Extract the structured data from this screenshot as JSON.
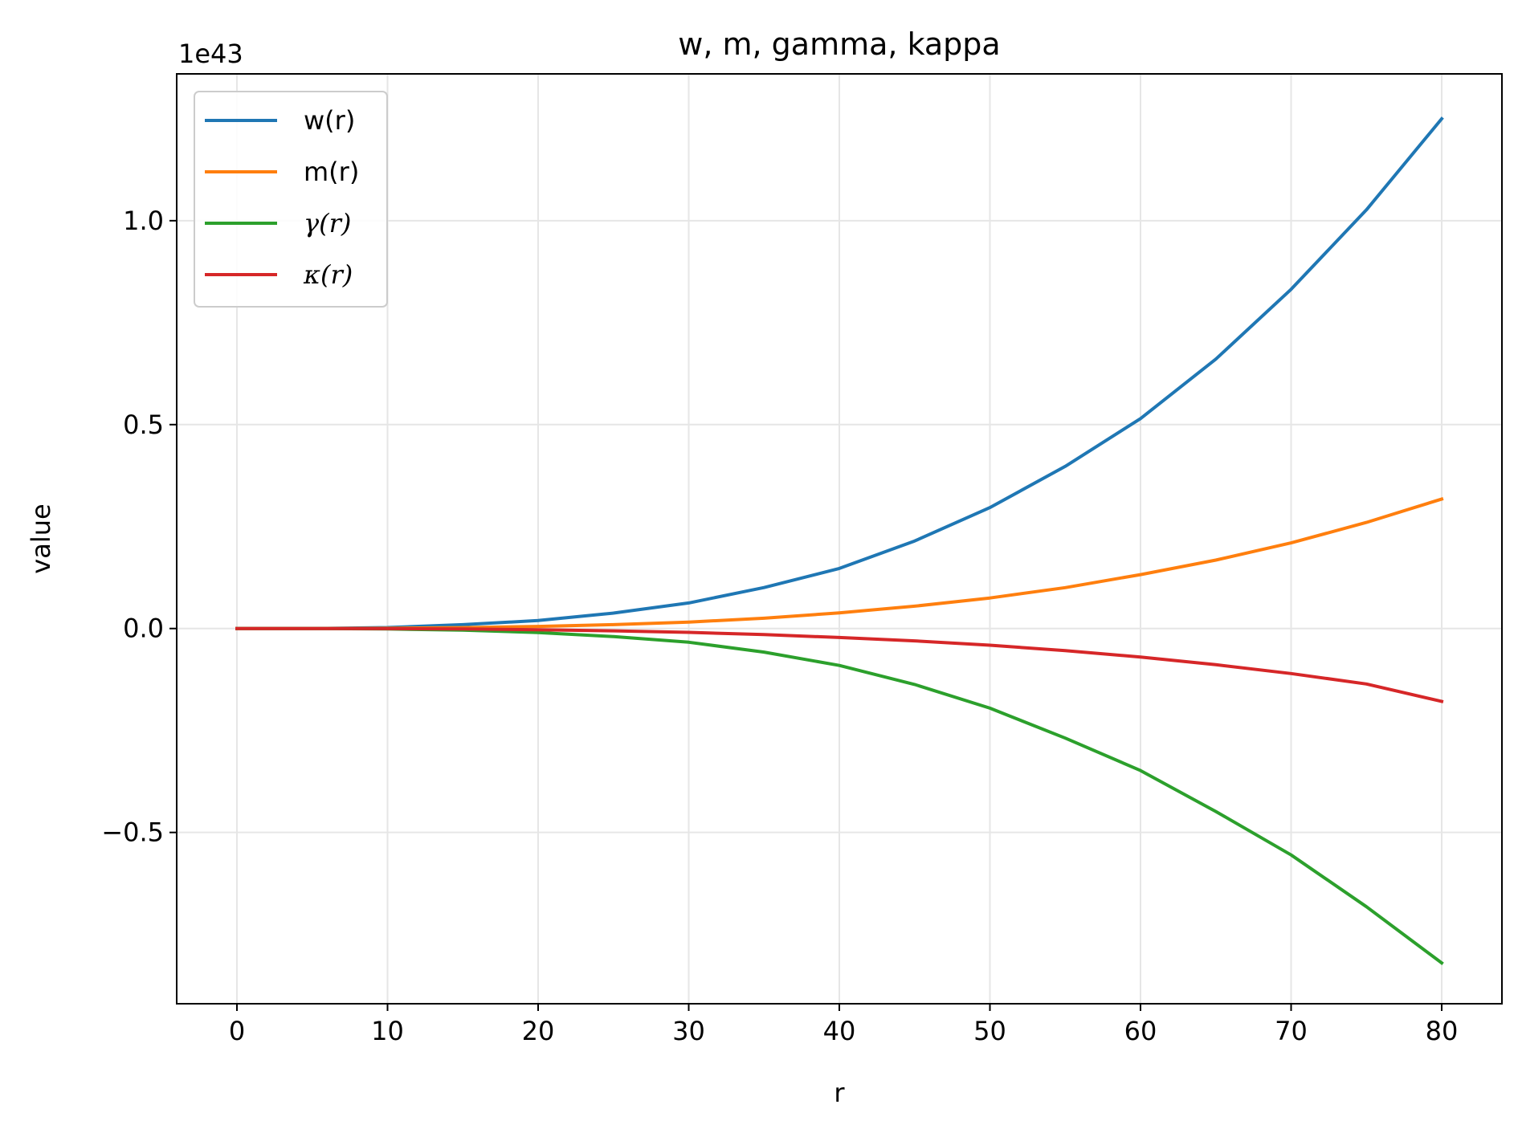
{
  "chart_data": {
    "type": "line",
    "title": "w, m, gamma, kappa",
    "xlabel": "r",
    "ylabel": "value",
    "y_offset_text": "1e43",
    "xlim": [
      -4,
      84
    ],
    "ylim": [
      -0.92,
      1.36
    ],
    "x_ticks": [
      0,
      10,
      20,
      30,
      40,
      50,
      60,
      70,
      80
    ],
    "x_tick_labels": [
      "0",
      "10",
      "20",
      "30",
      "40",
      "50",
      "60",
      "70",
      "80"
    ],
    "y_ticks": [
      -0.5,
      0.0,
      0.5,
      1.0
    ],
    "y_tick_labels": [
      "−0.5",
      "0.0",
      "0.5",
      "1.0"
    ],
    "grid": true,
    "legend_position": "top-left",
    "x": [
      0,
      5,
      10,
      15,
      20,
      25,
      30,
      35,
      40,
      45,
      50,
      55,
      60,
      65,
      70,
      75,
      80
    ],
    "series": [
      {
        "name": "w(r)",
        "color": "#1f77b4",
        "values": [
          0.0,
          0.0001,
          0.0024,
          0.0096,
          0.0196,
          0.0379,
          0.0626,
          0.1004,
          0.1473,
          0.2147,
          0.2965,
          0.3975,
          0.5147,
          0.6607,
          0.8318,
          1.0267,
          1.25
        ]
      },
      {
        "name": "m(r)",
        "color": "#ff7f0e",
        "values": [
          0.0,
          0.0,
          0.0006,
          0.0022,
          0.0051,
          0.0095,
          0.0158,
          0.0252,
          0.0384,
          0.0548,
          0.0749,
          0.1003,
          0.1321,
          0.1678,
          0.2099,
          0.2602,
          0.3175
        ]
      },
      {
        "name": "γ(r)",
        "color": "#2ca02c",
        "values": [
          0.0,
          0.0,
          -0.0012,
          -0.0041,
          -0.0097,
          -0.0198,
          -0.0336,
          -0.0578,
          -0.0905,
          -0.1371,
          -0.1953,
          -0.2687,
          -0.3482,
          -0.4487,
          -0.5551,
          -0.6821,
          -0.82
        ]
      },
      {
        "name": "κ(r)",
        "color": "#d62728",
        "values": [
          0.0,
          0.0,
          -0.0003,
          -0.0012,
          -0.0029,
          -0.0056,
          -0.0094,
          -0.0148,
          -0.0219,
          -0.0302,
          -0.0408,
          -0.0542,
          -0.0699,
          -0.0887,
          -0.1103,
          -0.1359,
          -0.1787
        ]
      }
    ]
  }
}
